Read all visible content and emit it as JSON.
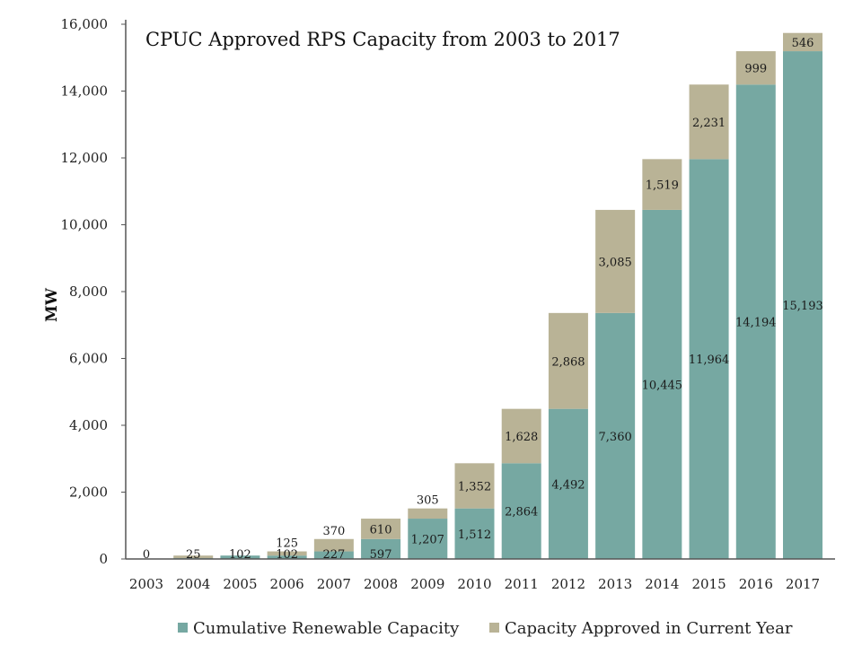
{
  "colors": {
    "cumulative": "#76a8a2",
    "approved": "#b9b396",
    "axis": "#555555"
  },
  "chart_data": {
    "type": "bar",
    "stacked": true,
    "title": "CPUC Approved RPS Capacity from 2003 to 2017",
    "xlabel": "",
    "ylabel": "MW",
    "ylim": [
      0,
      16000
    ],
    "yticks": [
      "0",
      "2,000",
      "4,000",
      "6,000",
      "8,000",
      "10,000",
      "12,000",
      "14,000",
      "16,000"
    ],
    "grid": false,
    "legend_position": "bottom",
    "categories": [
      "2003",
      "2004",
      "2005",
      "2006",
      "2007",
      "2008",
      "2009",
      "2010",
      "2011",
      "2012",
      "2013",
      "2014",
      "2015",
      "2016",
      "2017"
    ],
    "series": [
      {
        "name": "Cumulative Renewable Capacity",
        "values": [
          0,
          25,
          102,
          102,
          227,
          597,
          1207,
          1512,
          2864,
          4492,
          7360,
          10445,
          11964,
          14194,
          15193
        ],
        "labels": [
          "0",
          "25",
          "102",
          "102",
          "227",
          "597",
          "1,207",
          "1,512",
          "2,864",
          "4,492",
          "7,360",
          "10,445",
          "11,964",
          "14,194",
          "15,193"
        ]
      },
      {
        "name": "Capacity Approved in Current Year",
        "values": [
          0,
          77,
          0,
          125,
          370,
          610,
          305,
          1352,
          1628,
          2868,
          3085,
          1519,
          2231,
          999,
          546
        ],
        "labels": [
          "",
          "",
          "",
          "125",
          "370",
          "610",
          "305",
          "1,352",
          "1,628",
          "2,868",
          "3,085",
          "1,519",
          "2,231",
          "999",
          "546"
        ]
      }
    ]
  }
}
